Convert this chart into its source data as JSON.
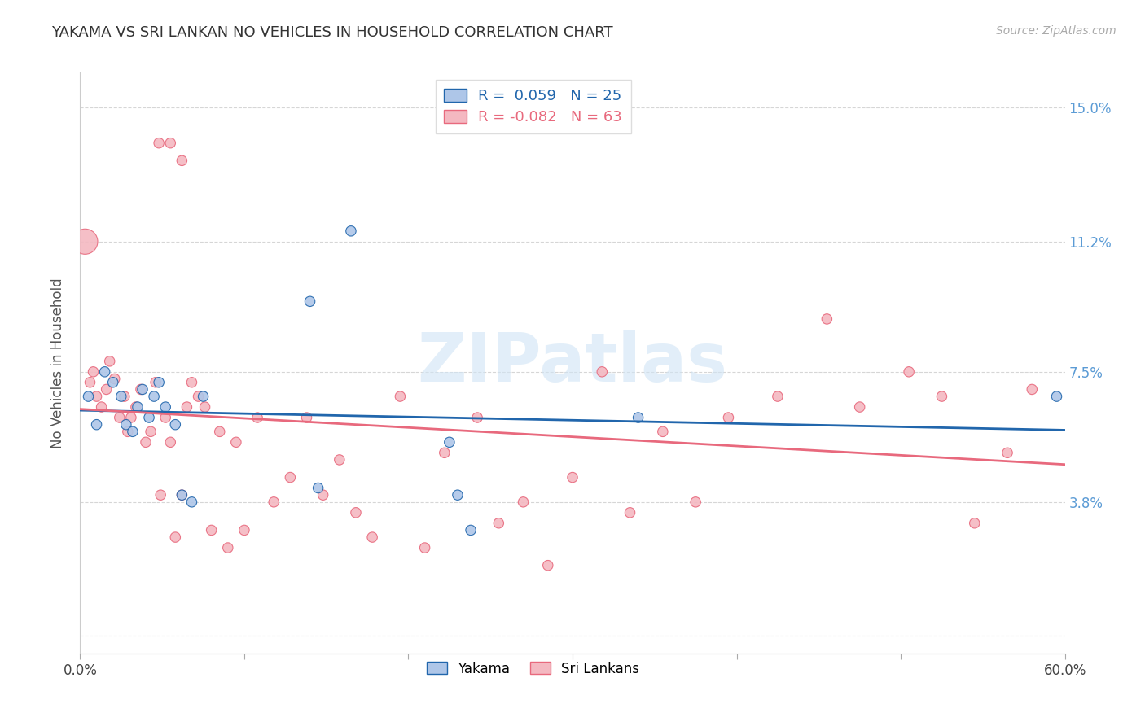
{
  "title": "YAKAMA VS SRI LANKAN NO VEHICLES IN HOUSEHOLD CORRELATION CHART",
  "source": "Source: ZipAtlas.com",
  "ylabel": "No Vehicles in Household",
  "xlim": [
    0.0,
    0.6
  ],
  "ylim": [
    -0.005,
    0.16
  ],
  "yticks": [
    0.0,
    0.038,
    0.075,
    0.112,
    0.15
  ],
  "ytick_labels": [
    "",
    "3.8%",
    "7.5%",
    "11.2%",
    "15.0%"
  ],
  "xticks": [
    0.0,
    0.1,
    0.2,
    0.3,
    0.4,
    0.5,
    0.6
  ],
  "xtick_labels": [
    "0.0%",
    "",
    "",
    "",
    "",
    "",
    "60.0%"
  ],
  "background_color": "#ffffff",
  "grid_color": "#cccccc",
  "yakama_color": "#aec6e8",
  "srilankan_color": "#f4b8c1",
  "yakama_line_color": "#2166ac",
  "srilankan_line_color": "#e8697d",
  "right_tick_color": "#5b9bd5",
  "yakama_R": 0.059,
  "yakama_N": 25,
  "srilankan_R": -0.082,
  "srilankan_N": 63,
  "yakama_x": [
    0.005,
    0.01,
    0.015,
    0.02,
    0.025,
    0.028,
    0.032,
    0.035,
    0.038,
    0.042,
    0.045,
    0.048,
    0.052,
    0.058,
    0.062,
    0.068,
    0.075,
    0.14,
    0.145,
    0.165,
    0.225,
    0.23,
    0.238,
    0.34,
    0.595
  ],
  "yakama_y": [
    0.068,
    0.06,
    0.075,
    0.072,
    0.068,
    0.06,
    0.058,
    0.065,
    0.07,
    0.062,
    0.068,
    0.072,
    0.065,
    0.06,
    0.04,
    0.038,
    0.068,
    0.095,
    0.042,
    0.115,
    0.055,
    0.04,
    0.03,
    0.062,
    0.068
  ],
  "yakama_sizes": [
    80,
    80,
    80,
    80,
    80,
    80,
    80,
    80,
    80,
    80,
    80,
    80,
    80,
    80,
    80,
    80,
    80,
    80,
    80,
    80,
    80,
    80,
    80,
    80,
    80
  ],
  "srilankan_x": [
    0.003,
    0.006,
    0.008,
    0.01,
    0.013,
    0.016,
    0.018,
    0.021,
    0.024,
    0.027,
    0.029,
    0.031,
    0.034,
    0.037,
    0.04,
    0.043,
    0.046,
    0.049,
    0.052,
    0.055,
    0.058,
    0.062,
    0.065,
    0.068,
    0.072,
    0.076,
    0.08,
    0.085,
    0.09,
    0.095,
    0.1,
    0.108,
    0.118,
    0.128,
    0.138,
    0.148,
    0.158,
    0.168,
    0.178,
    0.195,
    0.21,
    0.222,
    0.242,
    0.255,
    0.27,
    0.285,
    0.3,
    0.318,
    0.335,
    0.355,
    0.375,
    0.395,
    0.425,
    0.455,
    0.475,
    0.505,
    0.525,
    0.545,
    0.565,
    0.58,
    0.048,
    0.055,
    0.062
  ],
  "srilankan_y": [
    0.112,
    0.072,
    0.075,
    0.068,
    0.065,
    0.07,
    0.078,
    0.073,
    0.062,
    0.068,
    0.058,
    0.062,
    0.065,
    0.07,
    0.055,
    0.058,
    0.072,
    0.04,
    0.062,
    0.055,
    0.028,
    0.04,
    0.065,
    0.072,
    0.068,
    0.065,
    0.03,
    0.058,
    0.025,
    0.055,
    0.03,
    0.062,
    0.038,
    0.045,
    0.062,
    0.04,
    0.05,
    0.035,
    0.028,
    0.068,
    0.025,
    0.052,
    0.062,
    0.032,
    0.038,
    0.02,
    0.045,
    0.075,
    0.035,
    0.058,
    0.038,
    0.062,
    0.068,
    0.09,
    0.065,
    0.075,
    0.068,
    0.032,
    0.052,
    0.07,
    0.14,
    0.14,
    0.135
  ],
  "srilankan_sizes": [
    500,
    80,
    80,
    80,
    80,
    80,
    80,
    80,
    80,
    80,
    80,
    80,
    80,
    80,
    80,
    80,
    80,
    80,
    80,
    80,
    80,
    80,
    80,
    80,
    80,
    80,
    80,
    80,
    80,
    80,
    80,
    80,
    80,
    80,
    80,
    80,
    80,
    80,
    80,
    80,
    80,
    80,
    80,
    80,
    80,
    80,
    80,
    80,
    80,
    80,
    80,
    80,
    80,
    80,
    80,
    80,
    80,
    80,
    80,
    80,
    80,
    80,
    80
  ],
  "watermark": "ZIPatlas",
  "watermark_color": "#d0e4f5"
}
